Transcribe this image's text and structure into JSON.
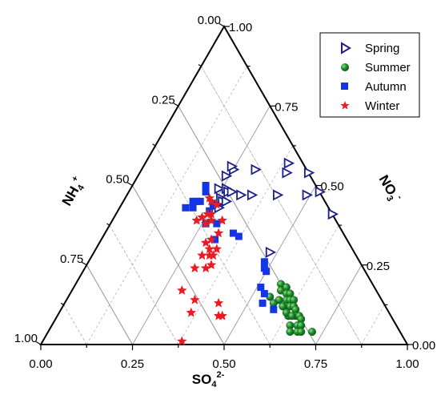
{
  "chart_data": {
    "type": "scatter",
    "subtype": "ternary",
    "axes": {
      "bottom": {
        "label": "SO",
        "sub": "4",
        "sup": "2-",
        "ticks": [
          "0.00",
          "0.25",
          "0.50",
          "0.75",
          "1.00"
        ]
      },
      "left": {
        "label": "NH",
        "sub": "4",
        "sup": "+",
        "ticks": [
          "0.00",
          "0.25",
          "0.50",
          "0.75",
          "1.00"
        ]
      },
      "right": {
        "label": "NO",
        "sub": "3",
        "sup": "-",
        "ticks": [
          "1.00",
          "0.75",
          "0.50",
          "0.25",
          "0.00"
        ]
      }
    },
    "grid": true,
    "legend_position": "top-right",
    "series": [
      {
        "name": "Spring",
        "marker": "triangle-right-open",
        "color": "#1c1f8a",
        "points": [
          {
            "so4": 0.25,
            "nh4": 0.2,
            "no3": 0.55
          },
          {
            "so4": 0.24,
            "nh4": 0.2,
            "no3": 0.56
          },
          {
            "so4": 0.24,
            "nh4": 0.23,
            "no3": 0.53
          },
          {
            "so4": 0.24,
            "nh4": 0.27,
            "no3": 0.49
          },
          {
            "so4": 0.26,
            "nh4": 0.25,
            "no3": 0.49
          },
          {
            "so4": 0.27,
            "nh4": 0.25,
            "no3": 0.48
          },
          {
            "so4": 0.28,
            "nh4": 0.24,
            "no3": 0.48
          },
          {
            "so4": 0.26,
            "nh4": 0.28,
            "no3": 0.46
          },
          {
            "so4": 0.27,
            "nh4": 0.28,
            "no3": 0.45
          },
          {
            "so4": 0.28,
            "nh4": 0.27,
            "no3": 0.45
          },
          {
            "so4": 0.26,
            "nh4": 0.3,
            "no3": 0.44
          },
          {
            "so4": 0.27,
            "nh4": 0.3,
            "no3": 0.43
          },
          {
            "so4": 0.31,
            "nh4": 0.22,
            "no3": 0.47
          },
          {
            "so4": 0.34,
            "nh4": 0.19,
            "no3": 0.47
          },
          {
            "so4": 0.31,
            "nh4": 0.14,
            "no3": 0.55
          },
          {
            "so4": 0.39,
            "nh4": 0.04,
            "no3": 0.57
          },
          {
            "so4": 0.4,
            "nh4": 0.06,
            "no3": 0.54
          },
          {
            "so4": 0.46,
            "nh4": 0.0,
            "no3": 0.54
          },
          {
            "so4": 0.41,
            "nh4": 0.12,
            "no3": 0.47
          },
          {
            "so4": 0.49,
            "nh4": 0.04,
            "no3": 0.47
          },
          {
            "so4": 0.52,
            "nh4": 0.0,
            "no3": 0.48
          },
          {
            "so4": 0.59,
            "nh4": 0.0,
            "no3": 0.41
          },
          {
            "so4": 0.48,
            "nh4": 0.23,
            "no3": 0.29
          }
        ]
      },
      {
        "name": "Summer",
        "marker": "sphere",
        "color": "#1d8f2a",
        "points": [
          {
            "so4": 0.56,
            "nh4": 0.25,
            "no3": 0.19
          },
          {
            "so4": 0.57,
            "nh4": 0.26,
            "no3": 0.17
          },
          {
            "so4": 0.58,
            "nh4": 0.24,
            "no3": 0.18
          },
          {
            "so4": 0.59,
            "nh4": 0.25,
            "no3": 0.16
          },
          {
            "so4": 0.6,
            "nh4": 0.24,
            "no3": 0.16
          },
          {
            "so4": 0.6,
            "nh4": 0.26,
            "no3": 0.14
          },
          {
            "so4": 0.61,
            "nh4": 0.25,
            "no3": 0.14
          },
          {
            "so4": 0.62,
            "nh4": 0.24,
            "no3": 0.14
          },
          {
            "so4": 0.61,
            "nh4": 0.27,
            "no3": 0.12
          },
          {
            "so4": 0.62,
            "nh4": 0.26,
            "no3": 0.12
          },
          {
            "so4": 0.63,
            "nh4": 0.25,
            "no3": 0.12
          },
          {
            "so4": 0.64,
            "nh4": 0.25,
            "no3": 0.11
          },
          {
            "so4": 0.63,
            "nh4": 0.28,
            "no3": 0.09
          },
          {
            "so4": 0.65,
            "nh4": 0.26,
            "no3": 0.09
          },
          {
            "so4": 0.66,
            "nh4": 0.25,
            "no3": 0.09
          },
          {
            "so4": 0.67,
            "nh4": 0.25,
            "no3": 0.08
          },
          {
            "so4": 0.65,
            "nh4": 0.29,
            "no3": 0.06
          },
          {
            "so4": 0.67,
            "nh4": 0.27,
            "no3": 0.06
          },
          {
            "so4": 0.68,
            "nh4": 0.26,
            "no3": 0.06
          },
          {
            "so4": 0.66,
            "nh4": 0.3,
            "no3": 0.04
          },
          {
            "so4": 0.68,
            "nh4": 0.28,
            "no3": 0.04
          },
          {
            "so4": 0.69,
            "nh4": 0.27,
            "no3": 0.04
          },
          {
            "so4": 0.58,
            "nh4": 0.28,
            "no3": 0.14
          },
          {
            "so4": 0.6,
            "nh4": 0.28,
            "no3": 0.12
          },
          {
            "so4": 0.62,
            "nh4": 0.28,
            "no3": 0.1
          },
          {
            "so4": 0.64,
            "nh4": 0.27,
            "no3": 0.09
          },
          {
            "so4": 0.55,
            "nh4": 0.3,
            "no3": 0.15
          },
          {
            "so4": 0.57,
            "nh4": 0.3,
            "no3": 0.13
          },
          {
            "so4": 0.72,
            "nh4": 0.24,
            "no3": 0.04
          }
        ]
      },
      {
        "name": "Autumn",
        "marker": "square",
        "color": "#1435e6",
        "points": [
          {
            "so4": 0.19,
            "nh4": 0.36,
            "no3": 0.45
          },
          {
            "so4": 0.2,
            "nh4": 0.37,
            "no3": 0.43
          },
          {
            "so4": 0.18,
            "nh4": 0.39,
            "no3": 0.43
          },
          {
            "so4": 0.2,
            "nh4": 0.35,
            "no3": 0.45
          },
          {
            "so4": 0.2,
            "nh4": 0.3,
            "no3": 0.5
          },
          {
            "so4": 0.21,
            "nh4": 0.34,
            "no3": 0.45
          },
          {
            "so4": 0.21,
            "nh4": 0.31,
            "no3": 0.48
          },
          {
            "so4": 0.25,
            "nh4": 0.33,
            "no3": 0.42
          },
          {
            "so4": 0.25,
            "nh4": 0.31,
            "no3": 0.44
          },
          {
            "so4": 0.26,
            "nh4": 0.36,
            "no3": 0.38
          },
          {
            "so4": 0.29,
            "nh4": 0.33,
            "no3": 0.38
          },
          {
            "so4": 0.31,
            "nh4": 0.36,
            "no3": 0.33
          },
          {
            "so4": 0.35,
            "nh4": 0.3,
            "no3": 0.35
          },
          {
            "so4": 0.37,
            "nh4": 0.29,
            "no3": 0.34
          },
          {
            "so4": 0.48,
            "nh4": 0.26,
            "no3": 0.26
          },
          {
            "so4": 0.49,
            "nh4": 0.27,
            "no3": 0.24
          },
          {
            "so4": 0.5,
            "nh4": 0.27,
            "no3": 0.23
          },
          {
            "so4": 0.51,
            "nh4": 0.31,
            "no3": 0.18
          },
          {
            "so4": 0.53,
            "nh4": 0.31,
            "no3": 0.16
          },
          {
            "so4": 0.54,
            "nh4": 0.33,
            "no3": 0.13
          },
          {
            "so4": 0.58,
            "nh4": 0.31,
            "no3": 0.11
          }
        ]
      },
      {
        "name": "Winter",
        "marker": "star",
        "color": "#ea1b23",
        "points": [
          {
            "so4": 0.23,
            "nh4": 0.31,
            "no3": 0.46
          },
          {
            "so4": 0.24,
            "nh4": 0.31,
            "no3": 0.45
          },
          {
            "so4": 0.26,
            "nh4": 0.3,
            "no3": 0.44
          },
          {
            "so4": 0.25,
            "nh4": 0.34,
            "no3": 0.41
          },
          {
            "so4": 0.27,
            "nh4": 0.34,
            "no3": 0.39
          },
          {
            "so4": 0.26,
            "nh4": 0.33,
            "no3": 0.41
          },
          {
            "so4": 0.24,
            "nh4": 0.36,
            "no3": 0.4
          },
          {
            "so4": 0.26,
            "nh4": 0.36,
            "no3": 0.38
          },
          {
            "so4": 0.23,
            "nh4": 0.38,
            "no3": 0.39
          },
          {
            "so4": 0.27,
            "nh4": 0.34,
            "no3": 0.39
          },
          {
            "so4": 0.3,
            "nh4": 0.31,
            "no3": 0.39
          },
          {
            "so4": 0.31,
            "nh4": 0.34,
            "no3": 0.35
          },
          {
            "so4": 0.3,
            "nh4": 0.37,
            "no3": 0.33
          },
          {
            "so4": 0.33,
            "nh4": 0.37,
            "no3": 0.3
          },
          {
            "so4": 0.31,
            "nh4": 0.39,
            "no3": 0.3
          },
          {
            "so4": 0.32,
            "nh4": 0.4,
            "no3": 0.28
          },
          {
            "so4": 0.3,
            "nh4": 0.42,
            "no3": 0.28
          },
          {
            "so4": 0.34,
            "nh4": 0.41,
            "no3": 0.25
          },
          {
            "so4": 0.33,
            "nh4": 0.43,
            "no3": 0.24
          },
          {
            "so4": 0.3,
            "nh4": 0.46,
            "no3": 0.24
          },
          {
            "so4": 0.33,
            "nh4": 0.39,
            "no3": 0.28
          },
          {
            "so4": 0.29,
            "nh4": 0.39,
            "no3": 0.32
          },
          {
            "so4": 0.3,
            "nh4": 0.53,
            "no3": 0.17
          },
          {
            "so4": 0.35,
            "nh4": 0.51,
            "no3": 0.14
          },
          {
            "so4": 0.36,
            "nh4": 0.54,
            "no3": 0.1
          },
          {
            "so4": 0.42,
            "nh4": 0.45,
            "no3": 0.13
          },
          {
            "so4": 0.44,
            "nh4": 0.47,
            "no3": 0.09
          },
          {
            "so4": 0.45,
            "nh4": 0.46,
            "no3": 0.09
          },
          {
            "so4": 0.38,
            "nh4": 0.61,
            "no3": 0.01
          }
        ]
      }
    ]
  }
}
